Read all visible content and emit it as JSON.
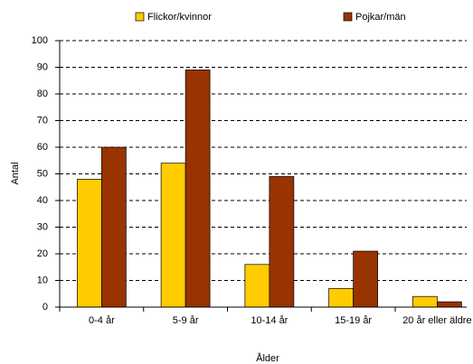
{
  "chart_data": {
    "type": "bar",
    "x_label": "Ålder",
    "y_label": "Antal",
    "categories": [
      "0-4 år",
      "5-9 år",
      "10-14 år",
      "15-19 år",
      "20 år eller äldre"
    ],
    "series": [
      {
        "name": "Flickor/kvinnor",
        "color": "#ffcc00",
        "values": [
          48,
          54,
          16,
          7,
          4
        ]
      },
      {
        "name": "Pojkar/män",
        "color": "#993300",
        "values": [
          60,
          89,
          49,
          21,
          2
        ]
      }
    ],
    "ylim": [
      0,
      100
    ],
    "yticks": [
      0,
      10,
      20,
      30,
      40,
      50,
      60,
      70,
      80,
      90,
      100
    ],
    "grid": true,
    "legend": "top"
  }
}
